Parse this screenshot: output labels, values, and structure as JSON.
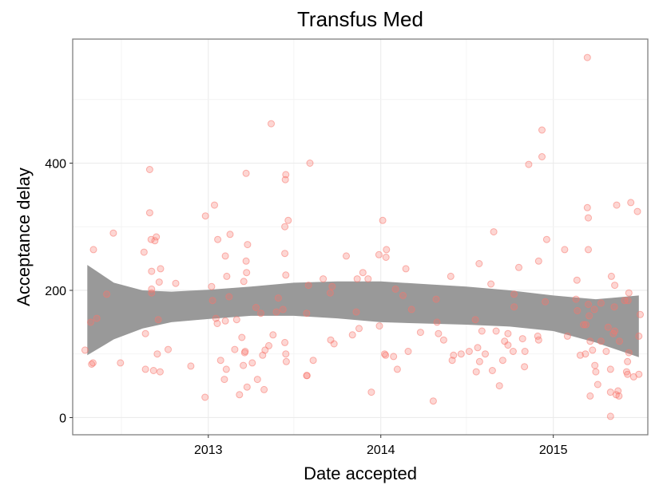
{
  "chart_data": {
    "type": "scatter",
    "title": "Transfus Med",
    "xlabel": "Date accepted",
    "ylabel": "Acceptance delay",
    "x_ticks": [
      {
        "label": "2013",
        "value": "2013-01-01"
      },
      {
        "label": "2014",
        "value": "2014-01-01"
      },
      {
        "label": "2015",
        "value": "2015-01-01"
      }
    ],
    "y_ticks": [
      0,
      200,
      400
    ],
    "xlim": [
      "2012-03-20",
      "2015-07-20"
    ],
    "ylim": [
      -27,
      595
    ],
    "grid": true,
    "point_color": "#f8766d",
    "smooth_band_color": "#999999",
    "smooth_line_color": "#3366ff",
    "points": [
      [
        "2012-04-15",
        106
      ],
      [
        "2012-04-27",
        150
      ],
      [
        "2012-04-29",
        84
      ],
      [
        "2012-05-02",
        86
      ],
      [
        "2012-05-03",
        264
      ],
      [
        "2012-05-10",
        156
      ],
      [
        "2012-05-31",
        194
      ],
      [
        "2012-06-14",
        290
      ],
      [
        "2012-06-29",
        86
      ],
      [
        "2012-08-18",
        260
      ],
      [
        "2012-08-21",
        132
      ],
      [
        "2012-08-21",
        76
      ],
      [
        "2012-08-30",
        322
      ],
      [
        "2012-08-30",
        390
      ],
      [
        "2012-09-02",
        280
      ],
      [
        "2012-09-03",
        230
      ],
      [
        "2012-09-03",
        196
      ],
      [
        "2012-09-03",
        202
      ],
      [
        "2012-09-07",
        74
      ],
      [
        "2012-09-10",
        278
      ],
      [
        "2012-09-13",
        284
      ],
      [
        "2012-09-15",
        100
      ],
      [
        "2012-09-17",
        154
      ],
      [
        "2012-09-19",
        213
      ],
      [
        "2012-09-21",
        72
      ],
      [
        "2012-09-22",
        234
      ],
      [
        "2012-10-08",
        107
      ],
      [
        "2012-10-24",
        211
      ],
      [
        "2012-11-25",
        81
      ],
      [
        "2012-12-25",
        32
      ],
      [
        "2012-12-26",
        317
      ],
      [
        "2013-01-08",
        206
      ],
      [
        "2013-01-10",
        184
      ],
      [
        "2013-01-14",
        334
      ],
      [
        "2013-01-17",
        156
      ],
      [
        "2013-01-20",
        148
      ],
      [
        "2013-01-21",
        280
      ],
      [
        "2013-01-27",
        90
      ],
      [
        "2013-02-04",
        60
      ],
      [
        "2013-02-06",
        152
      ],
      [
        "2013-02-06",
        254
      ],
      [
        "2013-02-08",
        76
      ],
      [
        "2013-02-09",
        222
      ],
      [
        "2013-02-14",
        190
      ],
      [
        "2013-02-16",
        288
      ],
      [
        "2013-02-26",
        107
      ],
      [
        "2013-03-02",
        154
      ],
      [
        "2013-03-08",
        36
      ],
      [
        "2013-03-13",
        126
      ],
      [
        "2013-03-16",
        82
      ],
      [
        "2013-03-17",
        214
      ],
      [
        "2013-03-19",
        102
      ],
      [
        "2013-03-20",
        104
      ],
      [
        "2013-03-22",
        384
      ],
      [
        "2013-03-22",
        246
      ],
      [
        "2013-03-23",
        228
      ],
      [
        "2013-03-24",
        48
      ],
      [
        "2013-03-25",
        272
      ],
      [
        "2013-04-04",
        86
      ],
      [
        "2013-04-12",
        173
      ],
      [
        "2013-04-15",
        60
      ],
      [
        "2013-04-22",
        164
      ],
      [
        "2013-04-26",
        98
      ],
      [
        "2013-04-29",
        44
      ],
      [
        "2013-05-01",
        106
      ],
      [
        "2013-05-09",
        113
      ],
      [
        "2013-05-14",
        462
      ],
      [
        "2013-05-18",
        130
      ],
      [
        "2013-05-25",
        166
      ],
      [
        "2013-05-29",
        188
      ],
      [
        "2013-06-08",
        170
      ],
      [
        "2013-06-12",
        258
      ],
      [
        "2013-06-12",
        300
      ],
      [
        "2013-06-12",
        118
      ],
      [
        "2013-06-13",
        374
      ],
      [
        "2013-06-14",
        382
      ],
      [
        "2013-06-14",
        224
      ],
      [
        "2013-06-14",
        100
      ],
      [
        "2013-06-15",
        88
      ],
      [
        "2013-06-19",
        310
      ],
      [
        "2013-07-28",
        66
      ],
      [
        "2013-07-28",
        164
      ],
      [
        "2013-07-29",
        66
      ],
      [
        "2013-08-01",
        208
      ],
      [
        "2013-08-04",
        400
      ],
      [
        "2013-08-11",
        90
      ],
      [
        "2013-09-01",
        218
      ],
      [
        "2013-09-16",
        196
      ],
      [
        "2013-09-17",
        122
      ],
      [
        "2013-09-20",
        206
      ],
      [
        "2013-09-24",
        116
      ],
      [
        "2013-10-20",
        254
      ],
      [
        "2013-11-02",
        130
      ],
      [
        "2013-11-10",
        166
      ],
      [
        "2013-11-12",
        218
      ],
      [
        "2013-11-16",
        140
      ],
      [
        "2013-11-24",
        228
      ],
      [
        "2013-12-05",
        218
      ],
      [
        "2013-12-12",
        40
      ],
      [
        "2013-12-28",
        256
      ],
      [
        "2013-12-29",
        144
      ],
      [
        "2014-01-05",
        310
      ],
      [
        "2014-01-09",
        100
      ],
      [
        "2014-01-11",
        98
      ],
      [
        "2014-01-12",
        252
      ],
      [
        "2014-01-13",
        264
      ],
      [
        "2014-01-28",
        96
      ],
      [
        "2014-02-01",
        202
      ],
      [
        "2014-02-05",
        76
      ],
      [
        "2014-02-17",
        192
      ],
      [
        "2014-02-23",
        234
      ],
      [
        "2014-02-28",
        104
      ],
      [
        "2014-03-07",
        170
      ],
      [
        "2014-03-26",
        134
      ],
      [
        "2014-04-22",
        26
      ],
      [
        "2014-04-28",
        186
      ],
      [
        "2014-04-30",
        150
      ],
      [
        "2014-05-03",
        132
      ],
      [
        "2014-05-14",
        122
      ],
      [
        "2014-05-29",
        222
      ],
      [
        "2014-06-01",
        90
      ],
      [
        "2014-06-04",
        98
      ],
      [
        "2014-06-20",
        100
      ],
      [
        "2014-07-07",
        104
      ],
      [
        "2014-07-20",
        154
      ],
      [
        "2014-07-22",
        72
      ],
      [
        "2014-07-25",
        110
      ],
      [
        "2014-07-28",
        242
      ],
      [
        "2014-07-29",
        88
      ],
      [
        "2014-08-03",
        136
      ],
      [
        "2014-08-10",
        100
      ],
      [
        "2014-08-22",
        210
      ],
      [
        "2014-08-25",
        74
      ],
      [
        "2014-08-28",
        292
      ],
      [
        "2014-09-02",
        136
      ],
      [
        "2014-09-09",
        50
      ],
      [
        "2014-09-16",
        90
      ],
      [
        "2014-09-20",
        120
      ],
      [
        "2014-09-27",
        132
      ],
      [
        "2014-09-27",
        114
      ],
      [
        "2014-10-08",
        104
      ],
      [
        "2014-10-10",
        194
      ],
      [
        "2014-10-10",
        174
      ],
      [
        "2014-10-20",
        236
      ],
      [
        "2014-10-28",
        124
      ],
      [
        "2014-11-01",
        80
      ],
      [
        "2014-11-02",
        104
      ],
      [
        "2014-11-10",
        398
      ],
      [
        "2014-11-29",
        128
      ],
      [
        "2014-12-01",
        246
      ],
      [
        "2014-12-01",
        122
      ],
      [
        "2014-12-08",
        452
      ],
      [
        "2014-12-08",
        410
      ],
      [
        "2014-12-15",
        182
      ],
      [
        "2014-12-18",
        280
      ],
      [
        "2015-01-25",
        264
      ],
      [
        "2015-01-31",
        128
      ],
      [
        "2015-02-18",
        186
      ],
      [
        "2015-02-20",
        216
      ],
      [
        "2015-02-21",
        168
      ],
      [
        "2015-02-27",
        98
      ],
      [
        "2015-03-06",
        146
      ],
      [
        "2015-03-10",
        100
      ],
      [
        "2015-03-11",
        146
      ],
      [
        "2015-03-14",
        566
      ],
      [
        "2015-03-14",
        330
      ],
      [
        "2015-03-16",
        314
      ],
      [
        "2015-03-16",
        264
      ],
      [
        "2015-03-16",
        178
      ],
      [
        "2015-03-18",
        160
      ],
      [
        "2015-03-20",
        120
      ],
      [
        "2015-03-20",
        34
      ],
      [
        "2015-03-25",
        106
      ],
      [
        "2015-03-29",
        170
      ],
      [
        "2015-03-30",
        82
      ],
      [
        "2015-04-01",
        72
      ],
      [
        "2015-04-05",
        52
      ],
      [
        "2015-04-12",
        180
      ],
      [
        "2015-04-12",
        120
      ],
      [
        "2015-04-23",
        104
      ],
      [
        "2015-04-27",
        142
      ],
      [
        "2015-05-02",
        76
      ],
      [
        "2015-05-02",
        2
      ],
      [
        "2015-05-02",
        40
      ],
      [
        "2015-05-04",
        222
      ],
      [
        "2015-05-08",
        132
      ],
      [
        "2015-05-10",
        174
      ],
      [
        "2015-05-11",
        136
      ],
      [
        "2015-05-11",
        208
      ],
      [
        "2015-05-14",
        36
      ],
      [
        "2015-05-15",
        334
      ],
      [
        "2015-05-18",
        42
      ],
      [
        "2015-05-20",
        34
      ],
      [
        "2015-05-21",
        120
      ],
      [
        "2015-06-01",
        184
      ],
      [
        "2015-06-05",
        72
      ],
      [
        "2015-06-07",
        88
      ],
      [
        "2015-06-07",
        68
      ],
      [
        "2015-06-08",
        184
      ],
      [
        "2015-06-10",
        196
      ],
      [
        "2015-06-10",
        102
      ],
      [
        "2015-06-14",
        338
      ],
      [
        "2015-06-20",
        64
      ],
      [
        "2015-06-28",
        324
      ],
      [
        "2015-07-01",
        128
      ],
      [
        "2015-07-01",
        68
      ],
      [
        "2015-07-04",
        162
      ]
    ],
    "smooth_band": [
      {
        "x": "2012-04-20",
        "upper": 240,
        "lower": 98
      },
      {
        "x": "2012-06-15",
        "upper": 212,
        "lower": 123
      },
      {
        "x": "2012-08-15",
        "upper": 200,
        "lower": 140
      },
      {
        "x": "2012-10-15",
        "upper": 198,
        "lower": 150
      },
      {
        "x": "2013-01-01",
        "upper": 201,
        "lower": 155
      },
      {
        "x": "2013-04-01",
        "upper": 206,
        "lower": 160
      },
      {
        "x": "2013-07-01",
        "upper": 212,
        "lower": 160
      },
      {
        "x": "2013-10-01",
        "upper": 214,
        "lower": 156
      },
      {
        "x": "2014-01-01",
        "upper": 214,
        "lower": 150
      },
      {
        "x": "2014-04-01",
        "upper": 210,
        "lower": 148
      },
      {
        "x": "2014-07-01",
        "upper": 206,
        "lower": 146
      },
      {
        "x": "2014-10-01",
        "upper": 200,
        "lower": 143
      },
      {
        "x": "2015-01-01",
        "upper": 192,
        "lower": 136
      },
      {
        "x": "2015-04-01",
        "upper": 186,
        "lower": 118
      },
      {
        "x": "2015-07-01",
        "upper": 192,
        "lower": 95
      }
    ]
  }
}
